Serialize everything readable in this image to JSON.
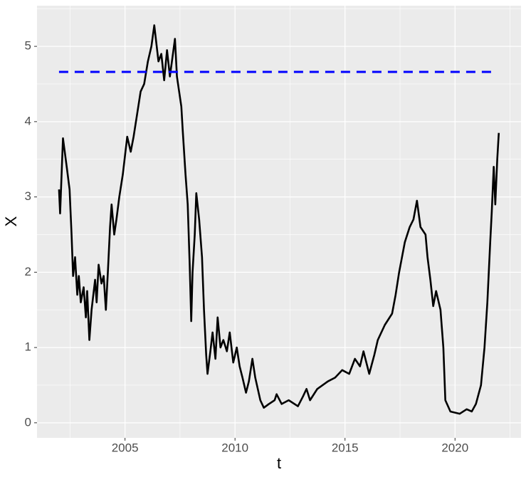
{
  "chart_data": {
    "type": "line",
    "xlabel": "t",
    "ylabel": "X",
    "xlim": [
      2001,
      2023
    ],
    "ylim": [
      -0.2,
      5.54
    ],
    "xticks": [
      2005,
      2010,
      2015,
      2020
    ],
    "yticks": [
      0,
      1,
      2,
      3,
      4,
      5
    ],
    "grid": true,
    "background": "#ebebeb",
    "series": [
      {
        "color": "#000000",
        "dash": false,
        "x": [
          2002.0,
          2002.05,
          2002.18,
          2002.35,
          2002.48,
          2002.57,
          2002.64,
          2002.73,
          2002.83,
          2002.9,
          2002.99,
          2003.12,
          2003.22,
          2003.28,
          2003.38,
          2003.48,
          2003.64,
          2003.71,
          2003.8,
          2003.93,
          2004.03,
          2004.13,
          2004.22,
          2004.32,
          2004.39,
          2004.51,
          2004.61,
          2004.74,
          2004.9,
          2005.1,
          2005.26,
          2005.39,
          2005.55,
          2005.71,
          2005.87,
          2006.04,
          2006.2,
          2006.33,
          2006.52,
          2006.65,
          2006.78,
          2006.91,
          2007.04,
          2007.27,
          2007.36,
          2007.56,
          2007.62,
          2007.75,
          2007.85,
          2007.94,
          2008.01,
          2008.07,
          2008.17,
          2008.24,
          2008.37,
          2008.5,
          2008.59,
          2008.69,
          2008.75,
          2008.88,
          2008.98,
          2009.11,
          2009.21,
          2009.34,
          2009.47,
          2009.63,
          2009.76,
          2009.92,
          2010.08,
          2010.21,
          2010.34,
          2010.5,
          2010.63,
          2010.79,
          2010.92,
          2011.15,
          2011.31,
          2011.54,
          2011.8,
          2011.89,
          2012.12,
          2012.44,
          2012.86,
          2013.09,
          2013.25,
          2013.41,
          2013.74,
          2014.22,
          2014.55,
          2014.87,
          2015.19,
          2015.45,
          2015.68,
          2015.84,
          2016.1,
          2016.33,
          2016.49,
          2016.81,
          2017.14,
          2017.3,
          2017.46,
          2017.72,
          2017.94,
          2018.11,
          2018.27,
          2018.43,
          2018.66,
          2018.75,
          2018.88,
          2019.01,
          2019.14,
          2019.34,
          2019.47,
          2019.56,
          2019.79,
          2020.21,
          2020.53,
          2020.76,
          2020.95,
          2021.18,
          2021.34,
          2021.47,
          2021.6,
          2021.67,
          2021.76,
          2021.83,
          2021.92,
          2021.99
        ],
        "values": [
          3.1,
          2.78,
          3.78,
          3.4,
          3.1,
          2.5,
          1.95,
          2.2,
          1.7,
          1.95,
          1.6,
          1.8,
          1.4,
          1.75,
          1.1,
          1.5,
          1.9,
          1.6,
          2.1,
          1.85,
          1.95,
          1.5,
          2.0,
          2.6,
          2.9,
          2.5,
          2.7,
          3.0,
          3.3,
          3.8,
          3.6,
          3.8,
          4.1,
          4.4,
          4.5,
          4.8,
          5.0,
          5.28,
          4.8,
          4.9,
          4.55,
          4.95,
          4.6,
          5.1,
          4.6,
          4.2,
          3.9,
          3.3,
          2.9,
          2.1,
          1.35,
          2.0,
          2.5,
          3.05,
          2.7,
          2.2,
          1.5,
          0.9,
          0.65,
          0.95,
          1.2,
          0.85,
          1.4,
          1.0,
          1.1,
          0.95,
          1.2,
          0.8,
          1.0,
          0.75,
          0.6,
          0.4,
          0.55,
          0.85,
          0.6,
          0.3,
          0.2,
          0.25,
          0.3,
          0.38,
          0.25,
          0.3,
          0.22,
          0.35,
          0.45,
          0.3,
          0.45,
          0.55,
          0.6,
          0.7,
          0.65,
          0.85,
          0.75,
          0.95,
          0.65,
          0.9,
          1.1,
          1.3,
          1.45,
          1.7,
          2.0,
          2.4,
          2.6,
          2.7,
          2.95,
          2.6,
          2.5,
          2.2,
          1.9,
          1.55,
          1.75,
          1.5,
          1.0,
          0.3,
          0.15,
          0.12,
          0.18,
          0.15,
          0.25,
          0.5,
          1.0,
          1.6,
          2.4,
          2.8,
          3.4,
          2.9,
          3.5,
          3.85
        ]
      },
      {
        "color": "#0000ff",
        "dash": true,
        "x": [
          2002.0,
          2021.8
        ],
        "values": [
          4.66,
          4.66
        ]
      }
    ]
  }
}
